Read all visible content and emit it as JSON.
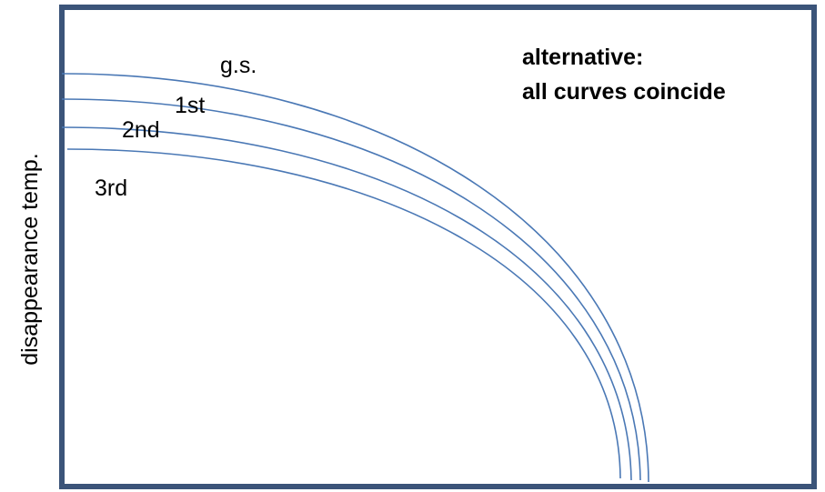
{
  "y_axis_label": "disappearance temp.",
  "curve_labels": {
    "gs": "g.s.",
    "first": "1st",
    "second": "2nd",
    "third": "3rd"
  },
  "note": {
    "line1": "alternative:",
    "line2": "all curves coincide"
  },
  "colors": {
    "frame": "#3b5479",
    "curve": "#4a78b5",
    "text": "#000000"
  }
}
